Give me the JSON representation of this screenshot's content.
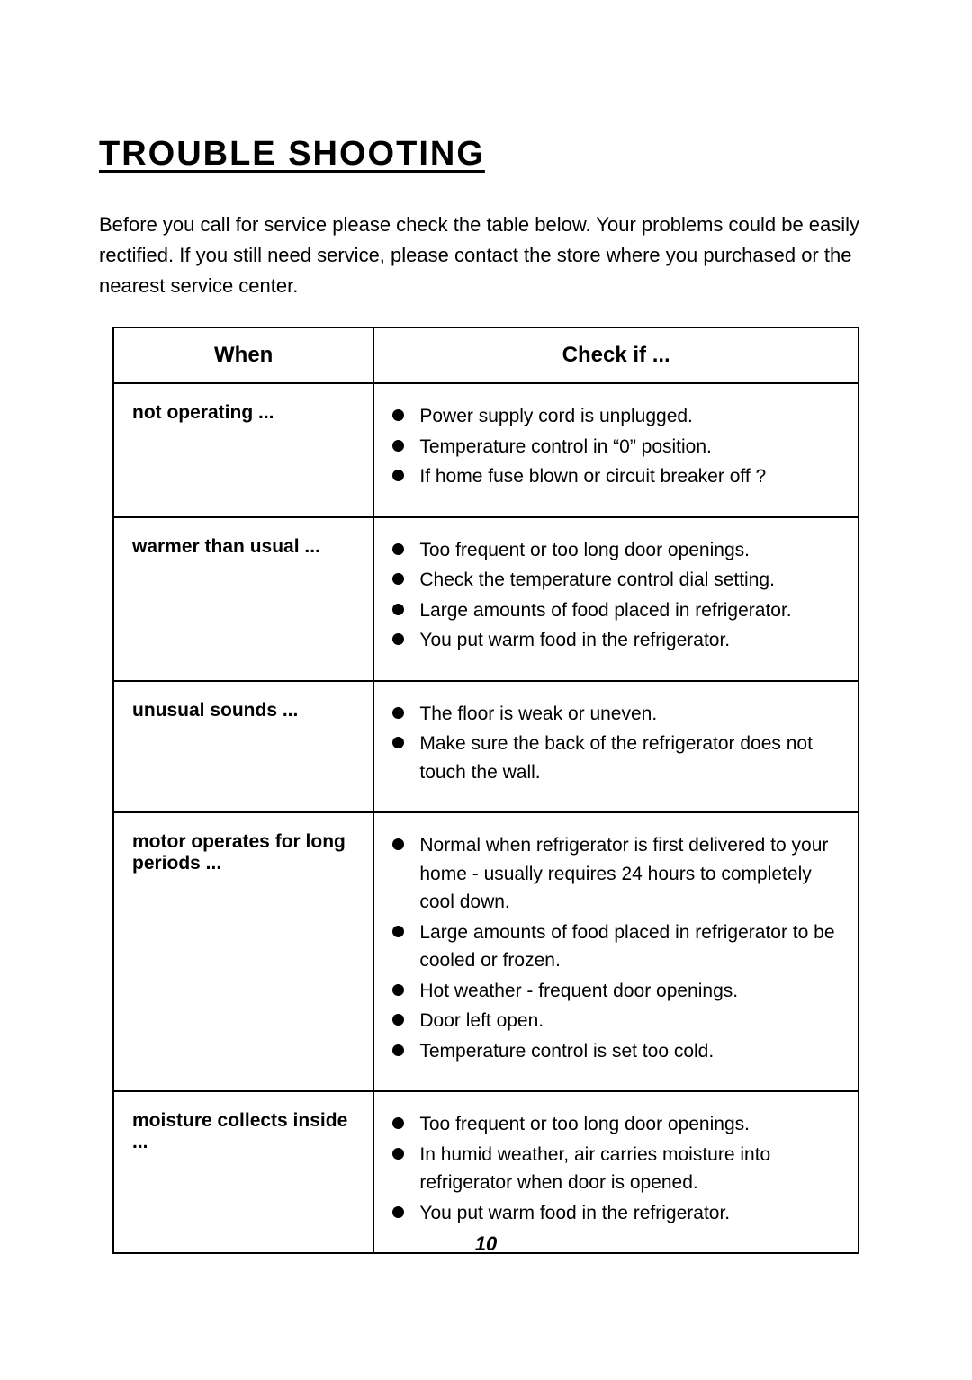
{
  "title": "TROUBLE SHOOTING",
  "intro": "Before you call for service please check the table below. Your problems could be easily rectified. If you still need service, please contact the store where you purchased or the nearest service center.",
  "table": {
    "header_when": "When",
    "header_check": "Check if ...",
    "rows": [
      {
        "when": "not operating ...",
        "checks": [
          "Power supply cord is unplugged.",
          "Temperature control in “0” position.",
          "If home fuse blown or circuit breaker off ?"
        ]
      },
      {
        "when": "warmer than usual ...",
        "checks": [
          "Too frequent or too long door openings.",
          "Check the temperature control dial setting.",
          "Large amounts of food placed in refrigerator.",
          "You put warm food in the refrigerator."
        ]
      },
      {
        "when": "unusual sounds ...",
        "checks": [
          "The floor is weak or uneven.",
          "Make sure the back of the refrigerator does not touch the wall."
        ]
      },
      {
        "when": "motor operates for long periods ...",
        "checks": [
          "Normal when refrigerator is first delivered to your home - usually requires 24 hours to completely cool down.",
          "Large amounts of food placed in refrigerator to be cooled or frozen.",
          "Hot weather - frequent door openings.",
          "Door left open.",
          "Temperature control is set too cold."
        ]
      },
      {
        "when": "moisture collects inside ...",
        "checks": [
          "Too frequent or too long door openings.",
          "In humid weather, air carries moisture into refrigerator when door is opened.",
          "You put warm food in the refrigerator."
        ]
      }
    ]
  },
  "page_number": "10"
}
